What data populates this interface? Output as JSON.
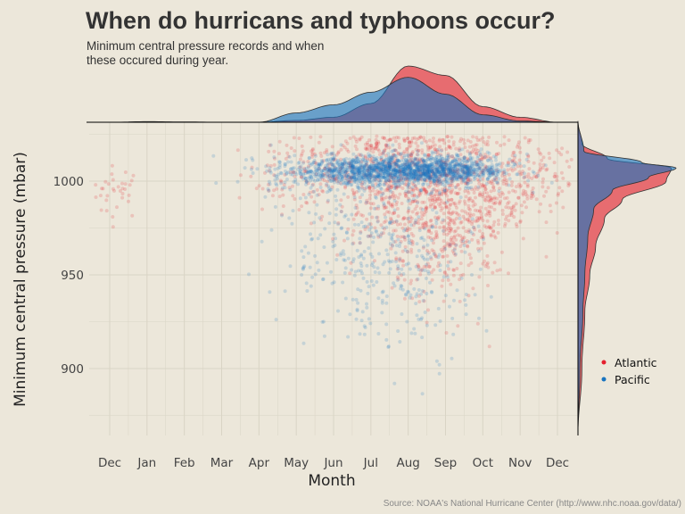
{
  "title": "When do hurricans and typhoons occur?",
  "subtitle": "Minimum central pressure records and when these occured during year.",
  "caption": "Source: NOAA's National Hurricane Center (http://www.nhc.noaa.gov/data/)",
  "colors": {
    "background": "#ece7da",
    "atlantic": "#e4202e",
    "pacific": "#1874c0",
    "overlap": "#5c5f90",
    "grid": "#d9d4c5"
  },
  "chart_data": {
    "type": "scatter",
    "xlabel": "Month",
    "ylabel": "Minimum central pressure (mbar)",
    "x_ticks": [
      "Dec",
      "Jan",
      "Feb",
      "Mar",
      "Apr",
      "May",
      "Jun",
      "Jul",
      "Aug",
      "Sep",
      "Oct",
      "Nov",
      "Dec"
    ],
    "y_ticks": [
      900,
      950,
      1000
    ],
    "ylim": [
      865,
      1032
    ],
    "grid": true,
    "legend_position": "right",
    "series": [
      {
        "name": "Atlantic",
        "color": "#e4202e",
        "clusters": [
          {
            "x": 0.2,
            "xs": 0.35,
            "y": 994,
            "ys": 7,
            "n": 35
          },
          {
            "x": 5.5,
            "xs": 1.0,
            "y": 1004,
            "ys": 10,
            "n": 140
          },
          {
            "x": 7.5,
            "xs": 1.0,
            "y": 1003,
            "ys": 14,
            "n": 420
          },
          {
            "x": 8.8,
            "xs": 0.8,
            "y": 985,
            "ys": 22,
            "n": 560
          },
          {
            "x": 10.2,
            "xs": 0.9,
            "y": 996,
            "ys": 17,
            "n": 330
          },
          {
            "x": 11.7,
            "xs": 0.6,
            "y": 1001,
            "ys": 8,
            "n": 55
          }
        ],
        "month_density": [
          0,
          0.01,
          0.005,
          0.0,
          0.0,
          0.03,
          0.08,
          0.3,
          0.9,
          0.75,
          0.25,
          0.08,
          0.0
        ],
        "pressure_density": [
          {
            "p": 865,
            "d": 0.0
          },
          {
            "p": 900,
            "d": 0.04
          },
          {
            "p": 930,
            "d": 0.07
          },
          {
            "p": 950,
            "d": 0.12
          },
          {
            "p": 965,
            "d": 0.18
          },
          {
            "p": 980,
            "d": 0.27
          },
          {
            "p": 990,
            "d": 0.45
          },
          {
            "p": 1000,
            "d": 0.9
          },
          {
            "p": 1007,
            "d": 0.95
          },
          {
            "p": 1012,
            "d": 0.3
          },
          {
            "p": 1020,
            "d": 0.04
          },
          {
            "p": 1032,
            "d": 0.0
          }
        ]
      },
      {
        "name": "Pacific",
        "color": "#1874c0",
        "clusters": [
          {
            "x": 6.5,
            "xs": 1.1,
            "y": 1005,
            "ys": 4,
            "n": 650
          },
          {
            "x": 8.0,
            "xs": 1.0,
            "y": 1006,
            "ys": 4,
            "n": 800
          },
          {
            "x": 9.3,
            "xs": 0.8,
            "y": 1006,
            "ys": 4,
            "n": 450
          },
          {
            "x": 6.8,
            "xs": 1.2,
            "y": 965,
            "ys": 22,
            "n": 260
          },
          {
            "x": 8.2,
            "xs": 0.9,
            "y": 960,
            "ys": 25,
            "n": 180
          }
        ],
        "month_density": [
          0,
          0.0,
          0.0,
          0.0,
          0.0,
          0.15,
          0.28,
          0.48,
          0.72,
          0.45,
          0.12,
          0.02,
          0.0
        ],
        "pressure_density": [
          {
            "p": 865,
            "d": 0.0
          },
          {
            "p": 900,
            "d": 0.02
          },
          {
            "p": 930,
            "d": 0.05
          },
          {
            "p": 950,
            "d": 0.07
          },
          {
            "p": 970,
            "d": 0.1
          },
          {
            "p": 985,
            "d": 0.16
          },
          {
            "p": 995,
            "d": 0.35
          },
          {
            "p": 1002,
            "d": 0.72
          },
          {
            "p": 1007,
            "d": 1.0
          },
          {
            "p": 1010,
            "d": 0.65
          },
          {
            "p": 1016,
            "d": 0.06
          },
          {
            "p": 1032,
            "d": 0.0
          }
        ]
      }
    ]
  }
}
